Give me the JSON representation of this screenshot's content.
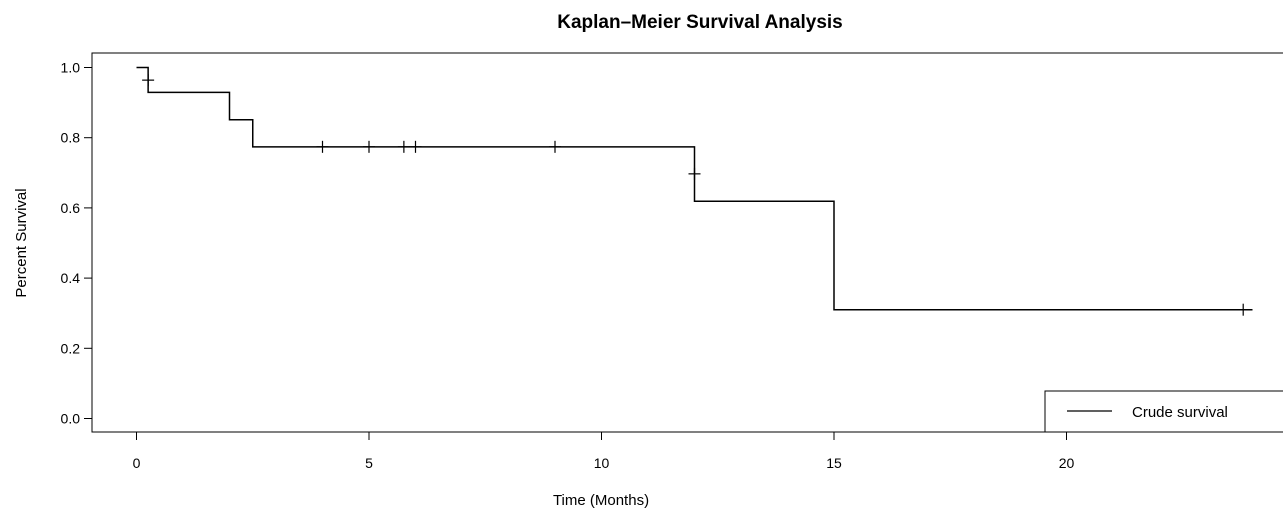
{
  "chart_data": {
    "type": "line",
    "subtype": "kaplan-meier-step",
    "title": "Kaplan–Meier Survival Analysis",
    "xlabel": "Time (Months)",
    "ylabel": "Percent Survival",
    "xlim": [
      0,
      24
    ],
    "ylim": [
      0,
      1
    ],
    "x_ticks": [
      0,
      5,
      10,
      15,
      20
    ],
    "x_tick_labels": [
      "0",
      "5",
      "10",
      "15",
      "20"
    ],
    "y_ticks": [
      0,
      0.2,
      0.4,
      0.6,
      0.8,
      1.0
    ],
    "y_tick_labels": [
      "0.0",
      "0.2",
      "0.4",
      "0.6",
      "0.8",
      "1.0"
    ],
    "grid": false,
    "legend_position": "bottom-right",
    "series": [
      {
        "name": "Crude survival",
        "color": "#000000",
        "steps": [
          {
            "x": 0,
            "y": 1.0
          },
          {
            "x": 0.25,
            "y": 0.929
          },
          {
            "x": 2,
            "y": 0.851
          },
          {
            "x": 2.5,
            "y": 0.774
          },
          {
            "x": 12,
            "y": 0.619
          },
          {
            "x": 15,
            "y": 0.31
          },
          {
            "x": 24,
            "y": 0.31
          }
        ],
        "censored": [
          {
            "x": 0.25,
            "y": 0.964
          },
          {
            "x": 4,
            "y": 0.774
          },
          {
            "x": 5,
            "y": 0.774
          },
          {
            "x": 5.75,
            "y": 0.774
          },
          {
            "x": 6,
            "y": 0.774
          },
          {
            "x": 9,
            "y": 0.774
          },
          {
            "x": 12,
            "y": 0.697
          },
          {
            "x": 23.8,
            "y": 0.31
          }
        ]
      }
    ]
  }
}
